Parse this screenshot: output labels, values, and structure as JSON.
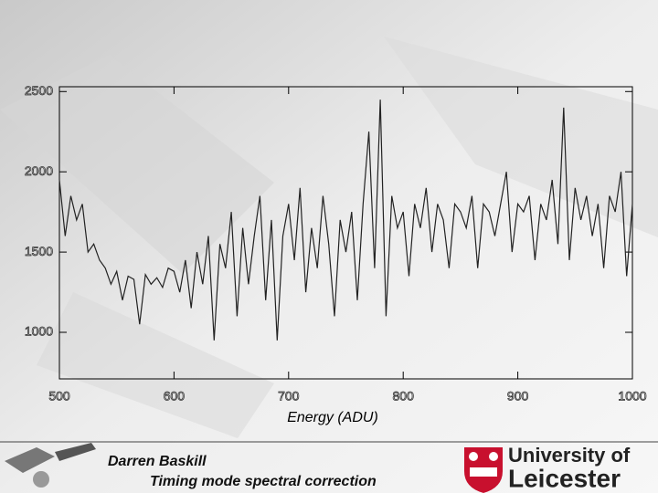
{
  "chart_data": {
    "type": "line",
    "xlabel": "Energy (ADU)",
    "x": [
      500,
      505,
      510,
      515,
      520,
      525,
      530,
      535,
      540,
      545,
      550,
      555,
      560,
      565,
      570,
      575,
      580,
      585,
      590,
      595,
      600,
      605,
      610,
      615,
      620,
      625,
      630,
      635,
      640,
      645,
      650,
      655,
      660,
      665,
      670,
      675,
      680,
      685,
      690,
      695,
      700,
      705,
      710,
      715,
      720,
      725,
      730,
      735,
      740,
      745,
      750,
      755,
      760,
      765,
      770,
      775,
      780,
      785,
      790,
      795,
      800,
      805,
      810,
      815,
      820,
      825,
      830,
      835,
      840,
      845,
      850,
      855,
      860,
      865,
      870,
      875,
      880,
      885,
      890,
      895,
      900,
      905,
      910,
      915,
      920,
      925,
      930,
      935,
      940,
      945,
      950,
      955,
      960,
      965,
      970,
      975,
      980,
      985,
      990,
      995,
      1000
    ],
    "series": [
      {
        "color": "#222222",
        "values": [
          1950,
          1600,
          1850,
          1700,
          1800,
          1500,
          1550,
          1450,
          1400,
          1300,
          1380,
          1200,
          1350,
          1330,
          1050,
          1360,
          1300,
          1340,
          1280,
          1400,
          1380,
          1250,
          1450,
          1150,
          1500,
          1300,
          1600,
          950,
          1550,
          1400,
          1750,
          1100,
          1650,
          1300,
          1600,
          1850,
          1200,
          1700,
          950,
          1600,
          1800,
          1450,
          1900,
          1250,
          1650,
          1400,
          1850,
          1550,
          1100,
          1700,
          1500,
          1750,
          1200,
          1800,
          2250,
          1400,
          2450,
          1100,
          1850,
          1650,
          1750,
          1350,
          1800,
          1650,
          1900,
          1500,
          1800,
          1700,
          1400,
          1800,
          1750,
          1650,
          1850,
          1400,
          1800,
          1750,
          1600,
          1800,
          2000,
          1500,
          1800,
          1750,
          1850,
          1450,
          1800,
          1700,
          1950,
          1550,
          2400,
          1450,
          1900,
          1700,
          1850,
          1600,
          1800,
          1400,
          1850,
          1750,
          2000,
          1350,
          1800
        ]
      }
    ],
    "xlim": [
      500,
      1000
    ],
    "xticks": [
      500,
      600,
      700,
      800,
      900,
      1000
    ],
    "ylim": [
      710,
      2530
    ],
    "yticks": [
      1000,
      1500,
      2000,
      2500
    ]
  },
  "footer": {
    "author": "Darren Baskill",
    "subtitle": "Timing mode spectral correction"
  },
  "logo": {
    "line1": "University of",
    "line2": "Leicester"
  }
}
